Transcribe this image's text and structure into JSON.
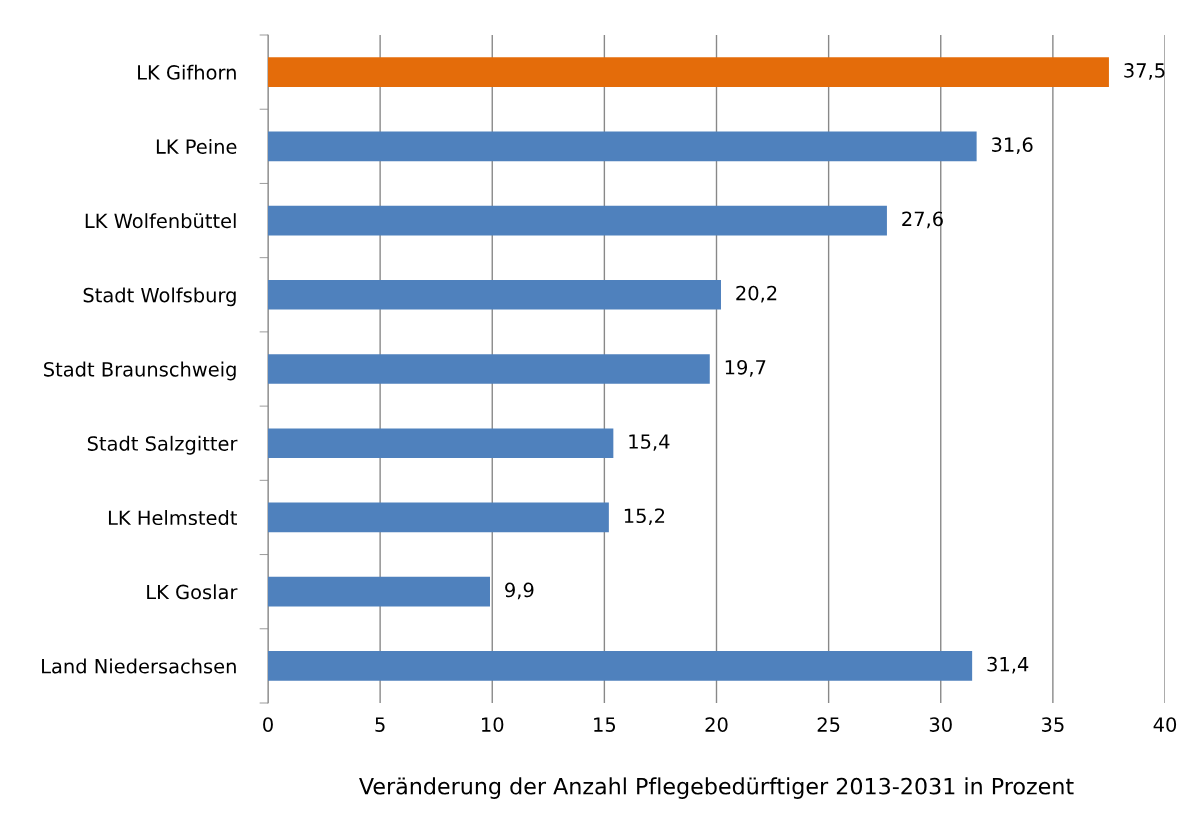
{
  "chart_data": {
    "type": "bar",
    "orientation": "horizontal",
    "xlabel": "Veränderung der Anzahl Pflegebedürftiger 2013-2031 in Prozent",
    "categories": [
      "LK Gifhorn",
      "LK Peine",
      "LK Wolfenbüttel",
      "Stadt Wolfsburg",
      "Stadt Braunschweig",
      "Stadt Salzgitter",
      "LK Helmstedt",
      "LK Goslar",
      "Land Niedersachsen"
    ],
    "values": [
      37.5,
      31.6,
      27.6,
      20.2,
      19.7,
      15.4,
      15.2,
      9.9,
      31.4
    ],
    "value_labels": [
      "37,5",
      "31,6",
      "27,6",
      "20,2",
      "19,7",
      "15,4",
      "15,2",
      "9,9",
      "31,4"
    ],
    "colors": [
      "#e46c0a",
      "#4f81bd",
      "#4f81bd",
      "#4f81bd",
      "#4f81bd",
      "#4f81bd",
      "#4f81bd",
      "#4f81bd",
      "#4f81bd"
    ],
    "xlim": [
      0,
      40
    ],
    "xticks": [
      0,
      5,
      10,
      15,
      20,
      25,
      30,
      35,
      40
    ],
    "grid": "x",
    "legend": false
  }
}
